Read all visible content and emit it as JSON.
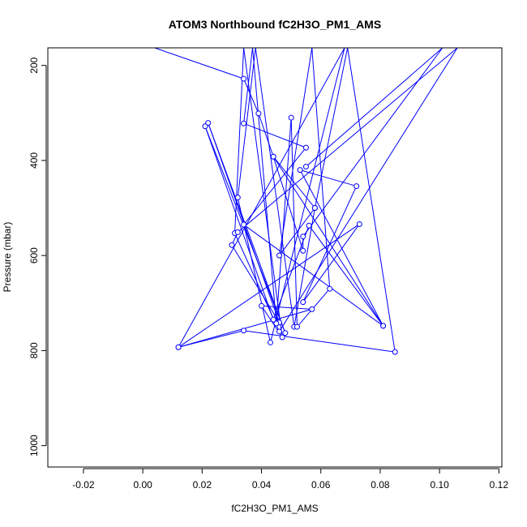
{
  "chart_data": {
    "type": "scatter",
    "title": "ATOM3 Northbound fC2H3O_PM1_AMS",
    "xlabel": "fC2H3O_PM1_AMS",
    "ylabel": "Pressure (mbar)",
    "xlim": [
      -0.032,
      0.121
    ],
    "ylim": [
      1045,
      163
    ],
    "y_inverted": true,
    "grid": false,
    "x_ticks": [
      -0.02,
      0.0,
      0.02,
      0.04,
      0.06,
      0.08,
      0.1,
      0.12
    ],
    "x_tick_labels": [
      "-0.02",
      "0.00",
      "0.02",
      "0.04",
      "0.06",
      "0.08",
      "0.10",
      "0.12"
    ],
    "y_ticks": [
      200,
      400,
      600,
      800,
      1000
    ],
    "y_tick_labels": [
      "200",
      "400",
      "600",
      "800",
      "1000"
    ],
    "series": [
      {
        "mode": "lines+markers",
        "color": "#0000ff",
        "points": [
          [
            0.004,
            163
          ],
          [
            0.034,
            228
          ],
          [
            0.039,
            301
          ],
          [
            0.044,
            392
          ],
          [
            0.058,
            500
          ],
          [
            0.051,
            750
          ],
          [
            0.038,
            163
          ],
          [
            0.032,
            478
          ],
          [
            0.043,
            783
          ],
          [
            0.068,
            163
          ],
          [
            0.012,
            793
          ],
          [
            0.057,
            713
          ],
          [
            0.04,
            706
          ],
          [
            0.047,
            772
          ],
          [
            0.034,
            163
          ],
          [
            0.031,
            553
          ],
          [
            0.046,
            760
          ],
          [
            0.106,
            163
          ],
          [
            0.032,
            551
          ],
          [
            0.03,
            578
          ],
          [
            0.046,
            741
          ],
          [
            0.022,
            321
          ],
          [
            0.048,
            763
          ],
          [
            0.021,
            328
          ],
          [
            0.044,
            735
          ],
          [
            0.056,
            537
          ],
          [
            0.081,
            748
          ],
          [
            0.034,
            535
          ],
          [
            0.055,
            373
          ],
          [
            0.034,
            322
          ],
          [
            0.037,
            163
          ],
          [
            0.045,
            743
          ],
          [
            0.05,
            310
          ],
          [
            0.052,
            750
          ],
          [
            0.063,
            670
          ],
          [
            0.057,
            163
          ],
          [
            0.046,
            600
          ],
          [
            0.058,
            500
          ],
          [
            0.069,
            163
          ],
          [
            0.085,
            803
          ],
          [
            0.034,
            758
          ],
          [
            0.012,
            793
          ],
          [
            0.073,
            534
          ],
          [
            0.054,
            698
          ],
          [
            0.072,
            454
          ],
          [
            0.053,
            420
          ],
          [
            0.081,
            748
          ],
          [
            0.044,
            392
          ],
          [
            0.054,
            590
          ],
          [
            0.054,
            560
          ],
          [
            0.101,
            163
          ],
          [
            0.055,
            413
          ]
        ]
      }
    ]
  }
}
